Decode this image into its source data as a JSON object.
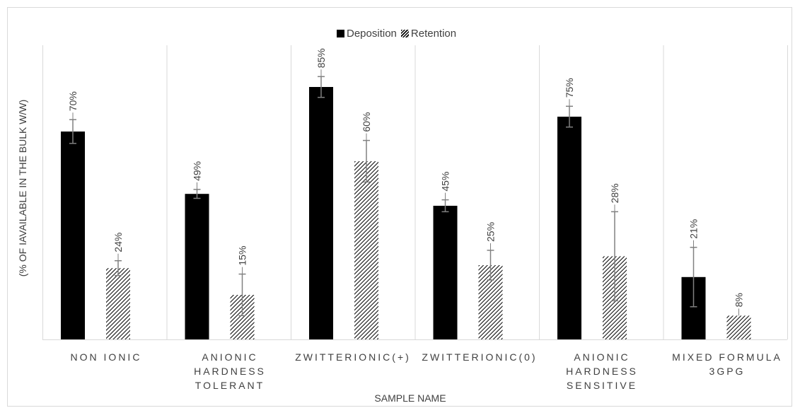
{
  "chart_data": {
    "type": "bar",
    "title": "",
    "xlabel": "SAMPLE NAME",
    "ylabel": "(% OF IAVAILABLE IN THE BULK W/W)",
    "categories": [
      "NON IONIC",
      "ANIONIC HARDNESS TOLERANT",
      "ZWITTERIONIC(+)",
      "ZWITTERIONIC(0)",
      "ANIONIC HARDNESS SENSITIVE",
      "MIXED FORMULA 3GPG"
    ],
    "series": [
      {
        "name": "Deposition",
        "values": [
          70,
          49,
          85,
          45,
          75,
          21
        ],
        "labels": [
          "70%",
          "49%",
          "85%",
          "45%",
          "75%",
          "21%"
        ],
        "errors": [
          4,
          1.5,
          3.5,
          2,
          3.5,
          10
        ]
      },
      {
        "name": "Retention",
        "values": [
          24,
          15,
          60,
          25,
          28,
          8
        ],
        "labels": [
          "24%",
          "15%",
          "60%",
          "25%",
          "28%",
          "8%"
        ],
        "errors": [
          2.5,
          7,
          7,
          5,
          15,
          0
        ]
      }
    ],
    "ylim": [
      0,
      100
    ],
    "grid": false,
    "legend": "top-center",
    "colors": {
      "deposition": "#000000",
      "retention_pattern": "#000000",
      "error_bar": "#808080",
      "text": "#404040",
      "divider": "#d9d9d9"
    }
  },
  "legend": {
    "deposition": "Deposition",
    "retention": "Retention"
  },
  "labels": {
    "cat0": "NON IONIC",
    "cat1": "ANIONIC HARDNESS TOLERANT",
    "cat2": "ZWITTERIONIC(+)",
    "cat3": "ZWITTERIONIC(0)",
    "cat4": "ANIONIC HARDNESS SENSITIVE",
    "cat5": "MIXED FORMULA 3GPG"
  }
}
